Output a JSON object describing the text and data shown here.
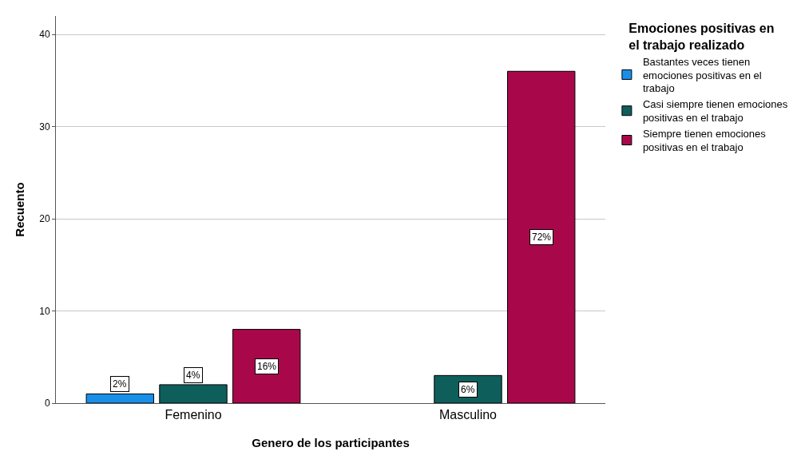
{
  "chart_data": {
    "type": "bar",
    "xlabel": "Genero de los participantes",
    "ylabel": "Recuento",
    "legend_title": "Emociones positivas en el trabajo realizado",
    "categories": [
      "Femenino",
      "Masculino"
    ],
    "series": [
      {
        "name": "Bastantes veces tienen emociones positivas en el trabajo",
        "color": "#1a8fe8",
        "values": [
          1,
          null
        ]
      },
      {
        "name": "Casi siempre tienen emociones positivas en el trabajo",
        "color": "#0e5e5c",
        "values": [
          2,
          3
        ]
      },
      {
        "name": "Siempre tienen emociones positivas en el trabajo",
        "color": "#a8084a",
        "values": [
          8,
          36
        ]
      }
    ],
    "annotations": [
      "2%",
      "4%",
      "16%",
      "6%",
      "72%"
    ],
    "ylim": [
      0,
      42
    ],
    "yticks": [
      0,
      10,
      20,
      30,
      40
    ],
    "grid": "y",
    "legend": "top right"
  }
}
